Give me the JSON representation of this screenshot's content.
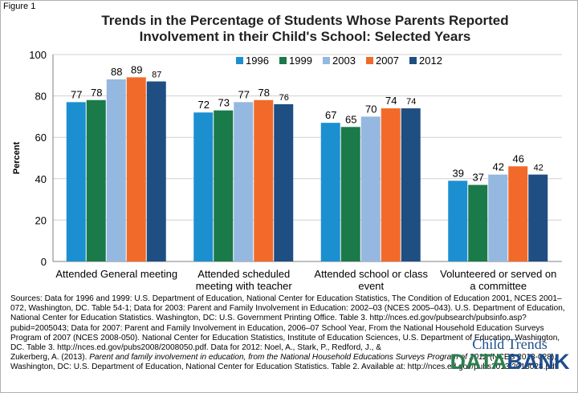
{
  "figure_label": "Figure 1",
  "chart_data": {
    "type": "bar",
    "title_line1": "Trends in the Percentage of Students Whose Parents Reported",
    "title_line2": "Involvement in their Child's School: Selected Years",
    "ylabel": "Percent",
    "xlabel": "",
    "ylim": [
      0,
      100
    ],
    "yticks": [
      0,
      20,
      40,
      60,
      80,
      100
    ],
    "legend_position": "top-right",
    "grid": true,
    "categories": [
      [
        "Attended General meeting"
      ],
      [
        "Attended scheduled",
        "meeting with teacher"
      ],
      [
        "Attended school or class",
        "event"
      ],
      [
        "Volunteered or served on",
        "a committee"
      ]
    ],
    "series": [
      {
        "name": "1996",
        "color": "#1c8fd1",
        "values": [
          77,
          72,
          67,
          39
        ]
      },
      {
        "name": "1999",
        "color": "#1a7a4a",
        "values": [
          78,
          73,
          65,
          37
        ]
      },
      {
        "name": "2003",
        "color": "#94b8e0",
        "values": [
          88,
          77,
          70,
          42
        ]
      },
      {
        "name": "2007",
        "color": "#f26a2a",
        "values": [
          89,
          78,
          74,
          46
        ]
      },
      {
        "name": "2012",
        "color": "#1f4e82",
        "values": [
          87,
          76,
          74,
          42
        ]
      }
    ]
  },
  "sources": {
    "part1": "Sources: Data for 1996 and 1999: U.S. Department of Education, National Center for Education Statistics, The Condition of Education 2001, NCES 2001–072, Washington, DC. Table 54-1; Data for 2003: Parent and Family Involvement in Education: 2002–03 (NCES 2005–043). U.S. Department of Education, National Center for Education Statistics. Washington, DC: U.S. Government Printing Office. Table 3. http://nces.ed.gov/pubsearch/pubsinfo.asp?pubid=2005043; Data for 2007: Parent and Family Involvement in Education, 2006–07 School Year, From the National Household Education Surveys Program of 2007 (NCES 2008-050). National Center for Education Statistics, Institute of Education Sciences, U.S. Department of Education. Washington, DC. Table 3. http://nces.ed.gov/pubs2008/2008050.pdf. Data for 2012: Noel, A., Stark, P., Redford, J., &",
    "part2": "Zukerberg, A. (2013). ",
    "part2_italic": "Parent and family involvement in education, from the National Household Educations Surveys Program of 2012",
    "part3": " (NCES 2013-028), Washington, DC: U.S. Department of Education, National Center for Education Statistics. Table 2. Available at:  http://nces.ed.gov/pubs2013/2013028.pdf"
  },
  "logo": {
    "top": "Child Trends",
    "bottom_a": "DATA",
    "bottom_b": "BANK"
  }
}
